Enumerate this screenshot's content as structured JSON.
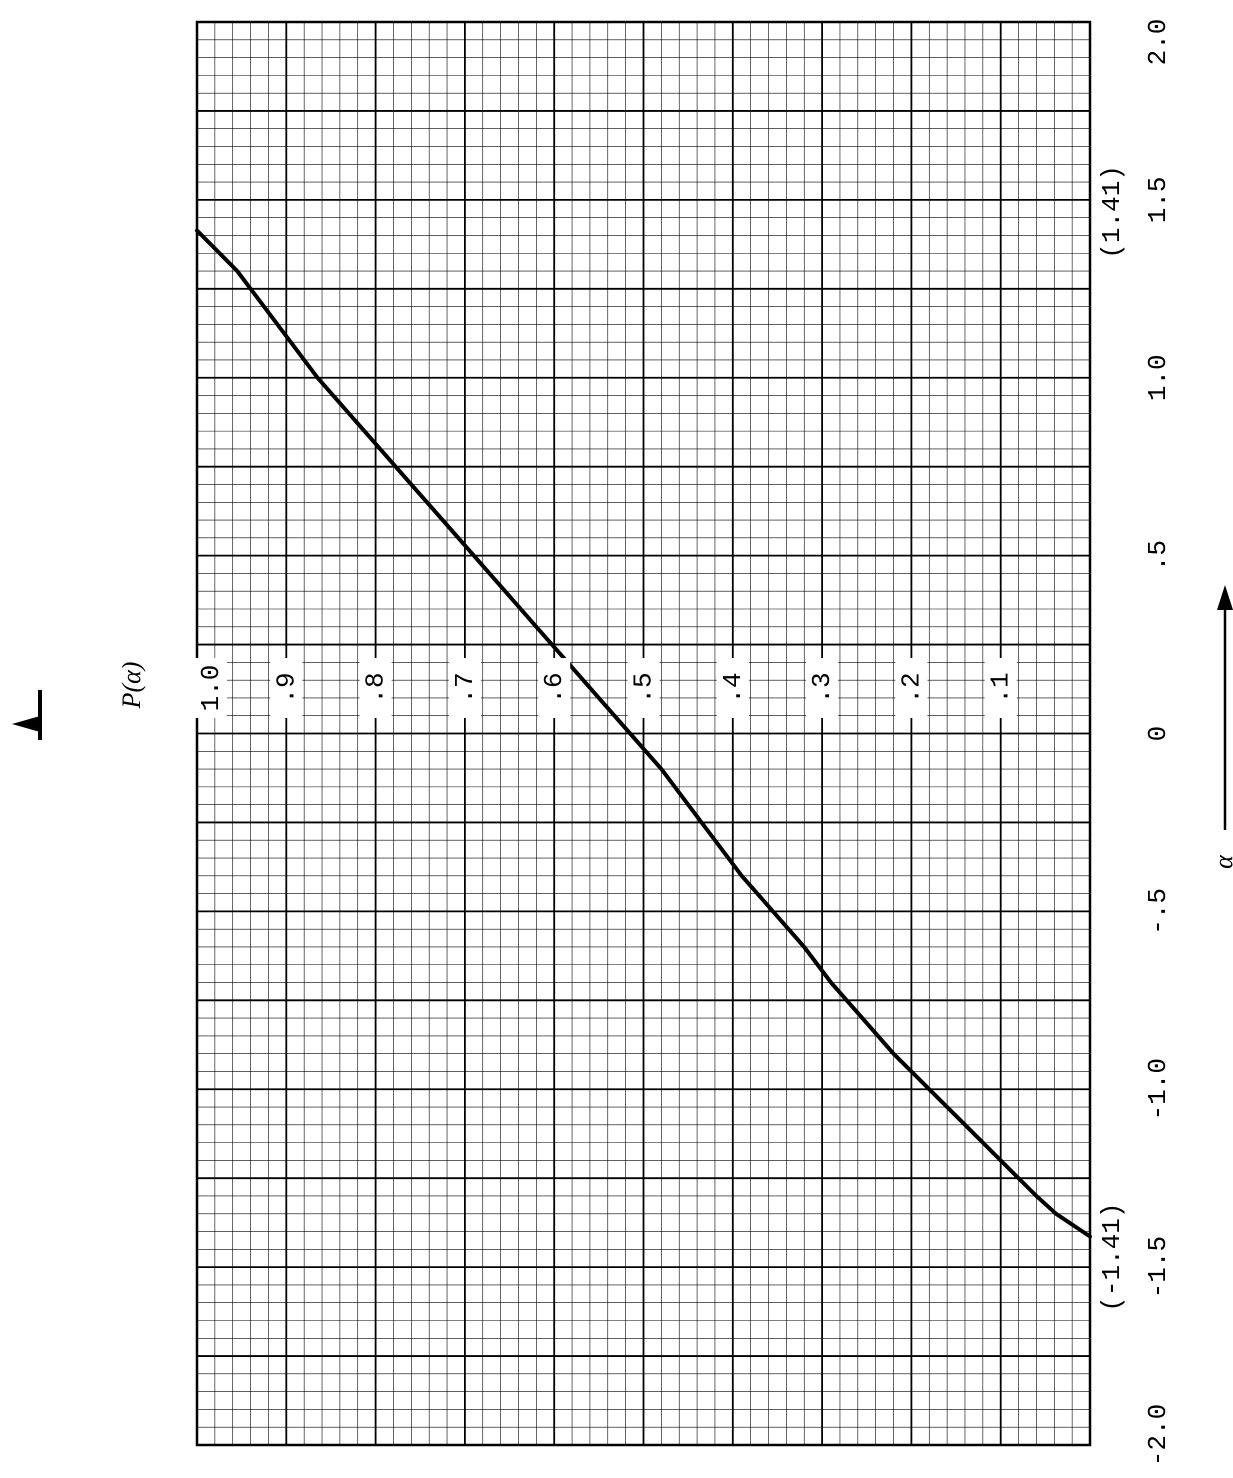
{
  "chart_data": {
    "type": "line",
    "orientation": "rotated-90",
    "xlabel": "α",
    "ylabel": "P(α)",
    "xlim": [
      -2.0,
      2.0
    ],
    "ylim": [
      0.0,
      1.0
    ],
    "x_ticks": [
      "-2.0",
      "-1.5",
      "-1.0",
      "-.5",
      "0",
      ".5",
      "1.0",
      "1.5",
      "2.0"
    ],
    "y_ticks": [
      "1.0",
      ".9",
      ".8",
      ".7",
      ".6",
      ".5",
      ".4",
      ".3",
      ".2",
      ".1"
    ],
    "annotations": [
      {
        "text": "(1.41)",
        "x": 1.41
      },
      {
        "text": "(-1.41)",
        "x": -1.41
      }
    ],
    "grid": true,
    "series": [
      {
        "x": [
          -1.414,
          -1.35,
          -1.3,
          -1.2,
          -1.1,
          -1.0,
          -0.9,
          -0.8,
          -0.7,
          -0.6,
          -0.5,
          -0.4,
          -0.3,
          -0.2,
          -0.1,
          0.0,
          0.1,
          0.2,
          0.3,
          0.4,
          0.5,
          0.6,
          0.7,
          0.8,
          0.9,
          1.0,
          1.1,
          1.2,
          1.3,
          1.414
        ],
        "y": [
          0.0,
          0.038,
          0.06,
          0.1,
          0.14,
          0.18,
          0.22,
          0.255,
          0.29,
          0.32,
          0.355,
          0.39,
          0.42,
          0.45,
          0.48,
          0.515,
          0.55,
          0.585,
          0.62,
          0.655,
          0.69,
          0.725,
          0.76,
          0.795,
          0.83,
          0.865,
          0.895,
          0.925,
          0.955,
          1.0
        ]
      }
    ]
  }
}
